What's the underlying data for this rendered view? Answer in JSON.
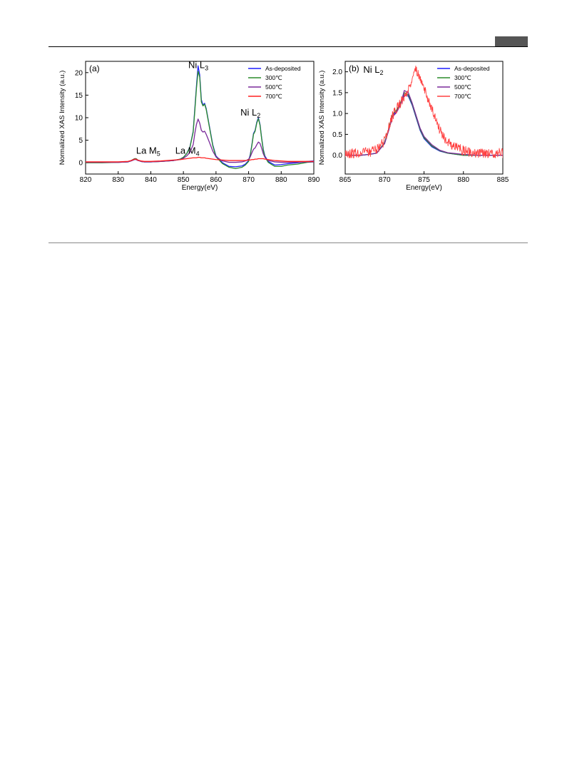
{
  "chart_data": [
    {
      "type": "line",
      "panel_label": "(a)",
      "title": "",
      "xlabel": "Energy(eV)",
      "ylabel": "Normalized XAS Intensity (a.u.)",
      "xlim": [
        820,
        890
      ],
      "ylim": [
        -2.5,
        22.5
      ],
      "xticks": [
        820,
        830,
        840,
        850,
        860,
        870,
        880,
        890
      ],
      "yticks": [
        0,
        5,
        10,
        15,
        20
      ],
      "grid": false,
      "legend": "top-right",
      "annotations": [
        {
          "text": "La M",
          "sub": "5",
          "x": 835.5,
          "y": 2.0
        },
        {
          "text": "La M",
          "sub": "4",
          "x": 847.5,
          "y": 2.0
        },
        {
          "text": "Ni L",
          "sub": "3",
          "x": 851.5,
          "y": 21.0
        },
        {
          "text": "Ni L",
          "sub": "2",
          "x": 867.5,
          "y": 10.5
        }
      ],
      "series": [
        {
          "name": "As-deposited",
          "color": "#1f1fff",
          "x": [
            820,
            825,
            830,
            833,
            834,
            835,
            835.5,
            836,
            837,
            838,
            840,
            843,
            845,
            847,
            849,
            850,
            851,
            852,
            853,
            853.5,
            854,
            854.5,
            855,
            855.5,
            856,
            856.5,
            857,
            858,
            859,
            860,
            862,
            864,
            866,
            868,
            869,
            870,
            870.5,
            871,
            871.5,
            872,
            872.5,
            873,
            873.5,
            874,
            874.5,
            875,
            876,
            878,
            880,
            882,
            885,
            888,
            890
          ],
          "y": [
            0.1,
            0.1,
            0.1,
            0.2,
            0.5,
            0.9,
            0.9,
            0.6,
            0.3,
            0.2,
            0.2,
            0.3,
            0.4,
            0.5,
            0.8,
            1.2,
            2.0,
            3.5,
            7.0,
            12.0,
            17.0,
            21.5,
            19.5,
            14.0,
            12.8,
            13.2,
            12.0,
            8.0,
            4.0,
            1.5,
            0.0,
            -0.8,
            -0.9,
            -0.7,
            -0.3,
            0.5,
            1.8,
            4.0,
            6.5,
            7.2,
            9.0,
            10.0,
            8.5,
            5.5,
            3.0,
            1.5,
            0.3,
            -0.5,
            -0.4,
            -0.2,
            0.0,
            0.3,
            0.4
          ]
        },
        {
          "name": "300℃",
          "color": "#2a8c2a",
          "x": [
            820,
            825,
            830,
            833,
            834,
            835,
            835.5,
            836,
            837,
            838,
            840,
            843,
            845,
            847,
            849,
            850,
            851,
            852,
            853,
            853.5,
            854,
            854.5,
            855,
            855.5,
            856,
            856.5,
            857,
            858,
            859,
            860,
            862,
            864,
            866,
            868,
            869,
            870,
            870.5,
            871,
            871.5,
            872,
            872.5,
            873,
            873.5,
            874,
            874.5,
            875,
            876,
            878,
            880,
            882,
            885,
            888,
            890
          ],
          "y": [
            0.0,
            0.0,
            0.1,
            0.2,
            0.5,
            0.9,
            0.9,
            0.6,
            0.3,
            0.2,
            0.2,
            0.3,
            0.4,
            0.5,
            0.8,
            1.2,
            2.0,
            3.4,
            6.8,
            11.5,
            16.5,
            20.3,
            19.0,
            13.5,
            12.6,
            13.0,
            11.8,
            7.8,
            3.8,
            1.3,
            -0.2,
            -1.0,
            -1.3,
            -1.0,
            -0.5,
            0.3,
            1.6,
            3.8,
            6.3,
            7.0,
            8.8,
            9.8,
            8.3,
            5.3,
            2.8,
            1.3,
            0.1,
            -0.8,
            -0.8,
            -0.5,
            -0.3,
            0.1,
            0.2
          ]
        },
        {
          "name": "500℃",
          "color": "#7a2a9a",
          "x": [
            820,
            825,
            830,
            833,
            834,
            835,
            835.5,
            836,
            837,
            838,
            840,
            843,
            845,
            847,
            849,
            850,
            851,
            852,
            853,
            853.5,
            854,
            854.5,
            855,
            855.5,
            856,
            856.5,
            857,
            858,
            859,
            860,
            862,
            864,
            866,
            868,
            869,
            870,
            870.5,
            871,
            871.5,
            872,
            872.5,
            873,
            873.5,
            874,
            874.5,
            875,
            876,
            878,
            880,
            882,
            885,
            888,
            890
          ],
          "y": [
            0.1,
            0.1,
            0.1,
            0.2,
            0.4,
            0.7,
            0.7,
            0.5,
            0.3,
            0.2,
            0.2,
            0.3,
            0.4,
            0.5,
            0.7,
            1.0,
            1.5,
            2.3,
            4.0,
            6.5,
            8.5,
            9.7,
            8.8,
            7.2,
            6.8,
            7.0,
            6.3,
            4.5,
            2.6,
            1.3,
            0.4,
            0.1,
            0.1,
            0.2,
            0.4,
            0.8,
            1.3,
            2.2,
            3.0,
            3.3,
            4.0,
            4.6,
            4.3,
            3.2,
            2.0,
            1.2,
            0.5,
            0.2,
            0.1,
            0.1,
            0.1,
            0.2,
            0.2
          ]
        },
        {
          "name": "700℃",
          "color": "#ff2020",
          "x": [
            820,
            825,
            830,
            833,
            834,
            835,
            835.5,
            836,
            837,
            838,
            840,
            843,
            845,
            847,
            849,
            850,
            851,
            852,
            853,
            853.5,
            854,
            854.5,
            855,
            855.5,
            856,
            856.5,
            857,
            858,
            859,
            860,
            862,
            864,
            866,
            868,
            869,
            870,
            870.5,
            871,
            871.5,
            872,
            872.5,
            873,
            873.5,
            874,
            874.5,
            875,
            876,
            878,
            880,
            882,
            885,
            888,
            890
          ],
          "y": [
            0.2,
            0.2,
            0.2,
            0.3,
            0.5,
            0.8,
            0.8,
            0.6,
            0.4,
            0.3,
            0.3,
            0.4,
            0.5,
            0.6,
            0.7,
            0.8,
            0.9,
            1.0,
            1.1,
            1.1,
            1.1,
            1.2,
            1.2,
            1.1,
            1.1,
            1.1,
            1.0,
            0.9,
            0.8,
            0.7,
            0.6,
            0.5,
            0.5,
            0.5,
            0.5,
            0.6,
            0.6,
            0.7,
            0.7,
            0.8,
            0.8,
            0.9,
            0.9,
            0.9,
            0.9,
            0.8,
            0.7,
            0.5,
            0.4,
            0.3,
            0.3,
            0.3,
            0.3
          ]
        }
      ]
    },
    {
      "type": "line",
      "panel_label": "(b)",
      "title": "",
      "xlabel": "Energy(eV)",
      "ylabel": "Normalized XAS Intensity (a.u.)",
      "xlim": [
        865,
        885
      ],
      "ylim": [
        -0.45,
        2.25
      ],
      "xticks": [
        865,
        870,
        875,
        880,
        885
      ],
      "yticks": [
        0.0,
        0.5,
        1.0,
        1.5,
        2.0
      ],
      "ytick_labels": [
        "0.0",
        "0.5",
        "1.0",
        "1.5",
        "2.0"
      ],
      "grid": false,
      "legend": "top-right",
      "annotations": [
        {
          "text": "Ni L",
          "sub": "2",
          "x": 867.3,
          "y": 1.98
        }
      ],
      "series": [
        {
          "name": "As-deposited",
          "color": "#1f1fff",
          "x": [
            865,
            866,
            867,
            868,
            869,
            870,
            870.5,
            871,
            871.5,
            872,
            872.5,
            873,
            873.5,
            874,
            874.5,
            875,
            876,
            877,
            878,
            880,
            882,
            885
          ],
          "y": [
            0.0,
            0.0,
            0.0,
            0.02,
            0.05,
            0.3,
            0.6,
            0.95,
            1.05,
            1.2,
            1.45,
            1.42,
            1.2,
            0.9,
            0.6,
            0.4,
            0.2,
            0.1,
            0.05,
            0.0,
            0.0,
            0.0
          ]
        },
        {
          "name": "300℃",
          "color": "#2a8c2a",
          "x": [
            865,
            866,
            867,
            868,
            869,
            870,
            870.5,
            871,
            871.5,
            872,
            872.5,
            873,
            873.5,
            874,
            874.5,
            875,
            876,
            877,
            878,
            880,
            882,
            885
          ],
          "y": [
            0.0,
            0.0,
            0.0,
            0.02,
            0.05,
            0.3,
            0.62,
            0.98,
            1.08,
            1.25,
            1.5,
            1.45,
            1.22,
            0.92,
            0.62,
            0.42,
            0.22,
            0.11,
            0.05,
            0.0,
            0.0,
            0.0
          ]
        },
        {
          "name": "500℃",
          "color": "#7a2a9a",
          "x": [
            865,
            866,
            867,
            868,
            869,
            870,
            870.5,
            871,
            871.5,
            872,
            872.5,
            873,
            873.5,
            874,
            874.5,
            875,
            876,
            877,
            878,
            880,
            882,
            885
          ],
          "y": [
            0.0,
            0.0,
            0.0,
            0.02,
            0.05,
            0.28,
            0.58,
            0.92,
            1.02,
            1.2,
            1.55,
            1.5,
            1.25,
            0.95,
            0.65,
            0.45,
            0.25,
            0.12,
            0.06,
            0.02,
            0.0,
            0.0
          ]
        },
        {
          "name": "700℃",
          "color": "#ff4040",
          "x": [
            865,
            866,
            867,
            868,
            869,
            870,
            870.5,
            871,
            871.5,
            872,
            872.5,
            873,
            873.5,
            874,
            874.5,
            875,
            875.5,
            876,
            877,
            878,
            880,
            882,
            885
          ],
          "y": [
            0.05,
            0.05,
            0.05,
            0.08,
            0.12,
            0.35,
            0.65,
            0.95,
            1.1,
            1.25,
            1.4,
            1.55,
            1.85,
            2.05,
            1.9,
            1.6,
            1.35,
            1.1,
            0.6,
            0.3,
            0.1,
            0.05,
            0.05
          ],
          "noise": 0.12
        }
      ]
    }
  ]
}
